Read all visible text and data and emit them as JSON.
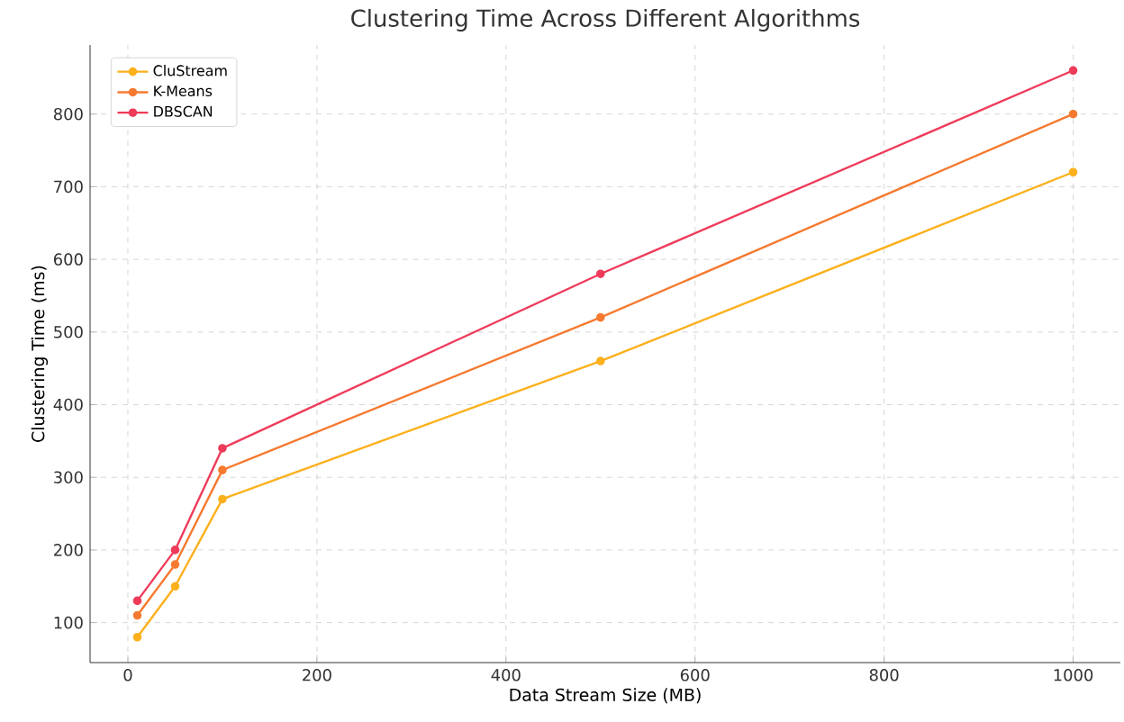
{
  "chart_data": {
    "type": "line",
    "title": "Clustering Time Across Different Algorithms",
    "xlabel": "Data Stream Size (MB)",
    "ylabel": "Clustering Time (ms)",
    "x": [
      10,
      50,
      100,
      500,
      1000
    ],
    "series": [
      {
        "name": "CluStream",
        "color": "#fbb01c",
        "values": [
          80,
          150,
          270,
          460,
          720
        ]
      },
      {
        "name": "K-Means",
        "color": "#f57a30",
        "values": [
          110,
          180,
          310,
          520,
          800
        ]
      },
      {
        "name": "DBSCAN",
        "color": "#ef3b5a",
        "values": [
          130,
          200,
          340,
          580,
          860
        ]
      }
    ],
    "xlim": [
      -40,
      1050
    ],
    "ylim": [
      45,
      895
    ],
    "xticks": [
      0,
      200,
      400,
      600,
      800,
      1000
    ],
    "yticks": [
      100,
      200,
      300,
      400,
      500,
      600,
      700,
      800
    ],
    "grid": true,
    "legend": "top left",
    "marker": "circle",
    "line_style": "solid"
  }
}
